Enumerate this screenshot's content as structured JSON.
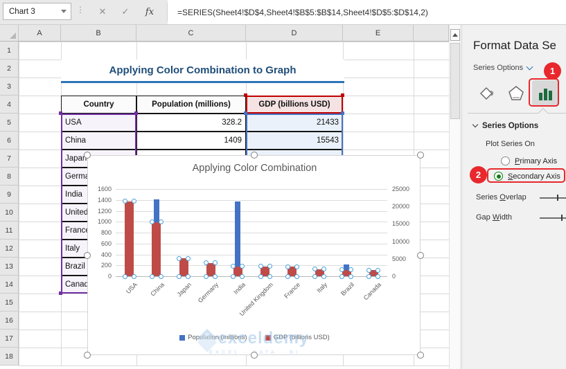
{
  "titlebar": {
    "name_box": "Chart 3",
    "cancel_glyph": "✕",
    "enter_glyph": "✓",
    "fx_glyph": "fx",
    "formula": "=SERIES(Sheet4!$D$4,Sheet4!$B$5:$B$14,Sheet4!$D$5:$D$14,2)"
  },
  "sheet": {
    "columns": [
      "A",
      "B",
      "C",
      "D",
      "E"
    ],
    "rows": [
      "1",
      "2",
      "3",
      "4",
      "5",
      "6",
      "7",
      "8",
      "9",
      "10",
      "11",
      "12",
      "13",
      "14",
      "15",
      "16",
      "17",
      "18"
    ],
    "title": "Applying Color Combination to Graph",
    "table": {
      "headers": [
        "Country",
        "Population (millions)",
        "GDP (billions USD)"
      ],
      "rows": [
        [
          "USA",
          "328.2",
          "21433"
        ],
        [
          "China",
          "1409",
          "15543"
        ],
        [
          "Japan",
          "",
          ""
        ],
        [
          "Germany",
          "",
          ""
        ],
        [
          "India",
          "",
          ""
        ],
        [
          "United Kingdom",
          "",
          ""
        ],
        [
          "France",
          "",
          ""
        ],
        [
          "Italy",
          "",
          ""
        ],
        [
          "Brazil",
          "",
          ""
        ],
        [
          "Canada",
          "",
          ""
        ]
      ]
    }
  },
  "chart": {
    "watermark_brand": "exceldemy",
    "watermark_tagline": "EXCEL · DATA · BI"
  },
  "chart_data": {
    "type": "bar",
    "title": "Applying Color Combination",
    "categories": [
      "USA",
      "China",
      "Japan",
      "Germany",
      "India",
      "United Kingdom",
      "France",
      "Italy",
      "Brazil",
      "Canada"
    ],
    "series": [
      {
        "name": "Population (millions)",
        "axis": "primary",
        "color": "#4472C4",
        "values": [
          328.2,
          1409,
          126.5,
          83.5,
          1366,
          66.8,
          67.1,
          60.3,
          211,
          37.6
        ]
      },
      {
        "name": "GDP (billions USD)",
        "axis": "secondary",
        "color": "#BE4B48",
        "values": [
          21433,
          15543,
          5082,
          3846,
          2875,
          2827,
          2716,
          2001,
          1840,
          1736
        ]
      }
    ],
    "primary_axis": {
      "min": 0,
      "max": 1600,
      "ticks": [
        "0",
        "200",
        "400",
        "600",
        "800",
        "1000",
        "1200",
        "1400",
        "1600"
      ]
    },
    "secondary_axis": {
      "min": 0,
      "max": 25000,
      "ticks": [
        "0",
        "5000",
        "10000",
        "15000",
        "20000",
        "25000"
      ]
    },
    "legend_position": "bottom",
    "grid": true,
    "selected_series": "GDP (billions USD)"
  },
  "panel": {
    "title": "Format Data Se",
    "dropdown_label": "Series Options",
    "tabs": [
      "fill-line",
      "effects",
      "series-options"
    ],
    "active_tab": "series-options",
    "section_title": "Series Options",
    "plot_series_on": "Plot Series On",
    "primary_axis": {
      "label": "Primary Axis",
      "accel": "P",
      "selected": false
    },
    "secondary_axis": {
      "label": "Secondary Axis",
      "accel": "S",
      "selected": true
    },
    "series_overlap": {
      "label": "Series Overlap",
      "accel": "O"
    },
    "gap_width": {
      "label": "Gap Width",
      "accel": "W"
    },
    "annotation_1": "1",
    "annotation_2": "2"
  },
  "colors": {
    "population_bar": "#4472C4",
    "gdp_bar": "#BE4B48",
    "series_name_range": "#C00000",
    "category_range": "#7030A0",
    "value_range": "#4472C4",
    "sheet_title_text": "#1F4E79",
    "annotation_red": "#E8282D",
    "radio_green": "#107C10"
  }
}
